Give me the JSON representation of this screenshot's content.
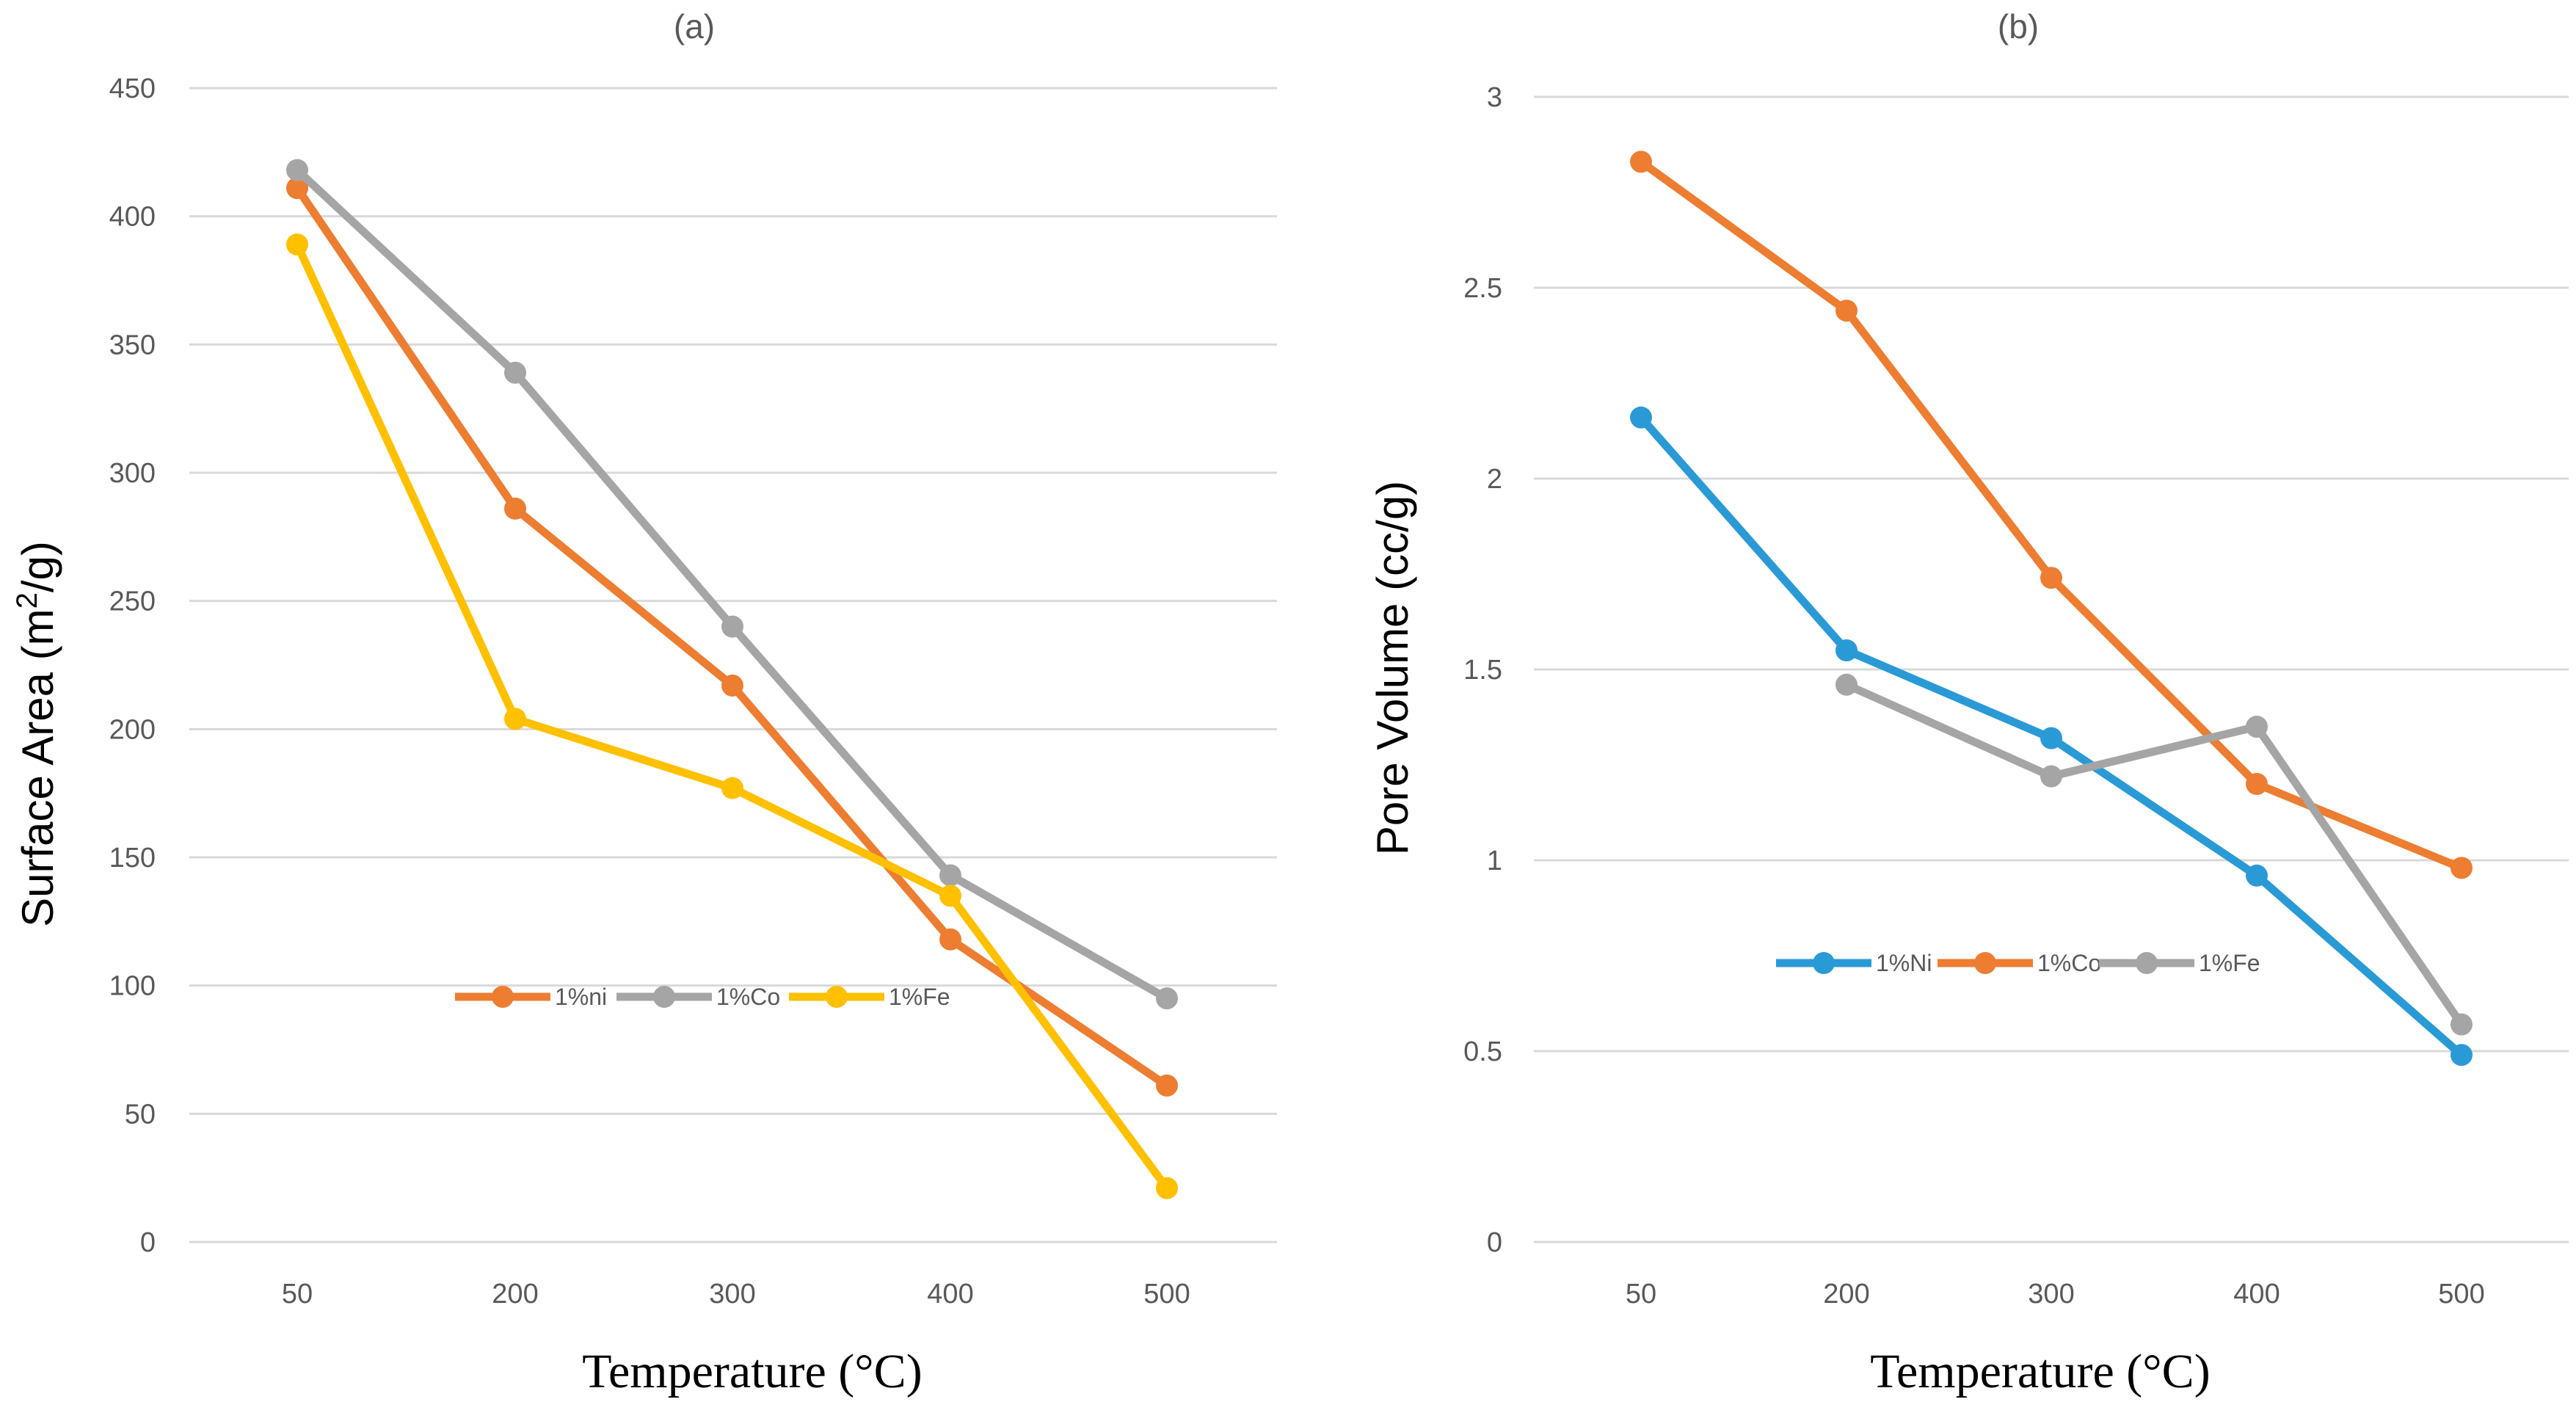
{
  "chart_data": [
    {
      "type": "line",
      "title": "(a)",
      "xlabel": "Temperature (°C)",
      "ylabel": "Surface Area (m²/g)",
      "ylim": [
        0,
        450
      ],
      "yticks": [
        0,
        50,
        100,
        150,
        200,
        250,
        300,
        350,
        400,
        450
      ],
      "categories": [
        "50",
        "200",
        "300",
        "400",
        "500"
      ],
      "grid": true,
      "legend_position": "center",
      "series": [
        {
          "name": "1%ni",
          "color": "#ED7D31",
          "values": [
            411,
            286,
            217,
            118,
            61
          ]
        },
        {
          "name": "1%Co",
          "color": "#A5A5A5",
          "values": [
            418,
            339,
            240,
            143,
            95
          ]
        },
        {
          "name": "1%Fe",
          "color": "#FFC000",
          "values": [
            389,
            204,
            177,
            135,
            21
          ]
        }
      ]
    },
    {
      "type": "line",
      "title": "(b)",
      "xlabel": "Temperature (°C)",
      "ylabel": "Pore Volume (cc/g)",
      "ylim": [
        0,
        3
      ],
      "yticks": [
        0,
        0.5,
        1,
        1.5,
        2,
        2.5,
        3
      ],
      "categories": [
        "50",
        "200",
        "300",
        "400",
        "500"
      ],
      "grid": true,
      "legend_position": "center",
      "series": [
        {
          "name": "1%Ni",
          "color": "#2A9AD6",
          "values": [
            2.16,
            1.55,
            1.32,
            0.96,
            0.49
          ]
        },
        {
          "name": "1%Co",
          "color": "#ED7D31",
          "values": [
            2.83,
            2.44,
            1.74,
            1.2,
            0.98
          ]
        },
        {
          "name": "1%Fe",
          "color": "#A5A5A5",
          "values": [
            null,
            1.46,
            1.22,
            1.35,
            0.57
          ]
        }
      ]
    }
  ]
}
